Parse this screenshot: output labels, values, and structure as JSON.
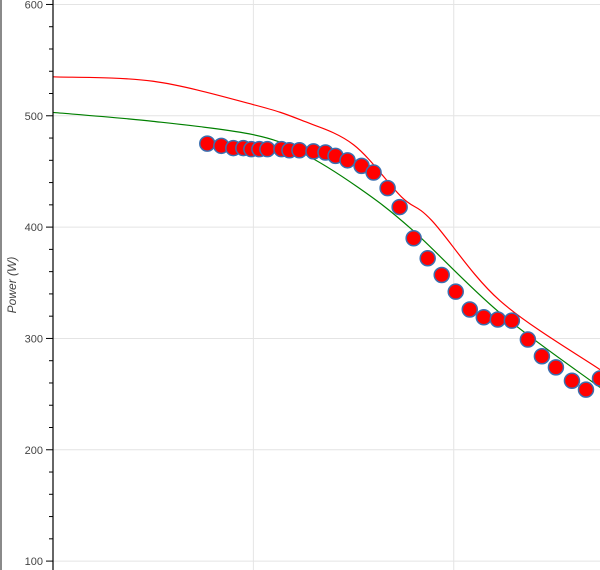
{
  "chart_data": {
    "type": "scatter",
    "title": "",
    "xlabel": "",
    "ylabel": "Power (W)",
    "xlim": [
      0,
      2.73
    ],
    "ylim": [
      92,
      604
    ],
    "x_gridlines": [
      1,
      2
    ],
    "y_ticks": [
      100,
      200,
      300,
      400,
      500,
      600
    ],
    "y_tick_labels": [
      "100",
      "200",
      "300",
      "400",
      "500",
      "600"
    ],
    "y_minor_tick_step": 20,
    "grid": true,
    "points": {
      "x": [
        0.77,
        0.84,
        0.9,
        0.95,
        0.99,
        1.03,
        1.07,
        1.14,
        1.18,
        1.23,
        1.3,
        1.36,
        1.41,
        1.47,
        1.54,
        1.6,
        1.67,
        1.73,
        1.8,
        1.87,
        1.94,
        2.01,
        2.08,
        2.15,
        2.22,
        2.29,
        2.37,
        2.44,
        2.51,
        2.59,
        2.66,
        2.73
      ],
      "y": [
        475,
        473,
        471,
        471,
        470,
        470,
        470,
        470,
        469,
        469,
        468,
        467,
        464,
        460,
        455,
        449,
        435,
        418,
        390,
        372,
        357,
        342,
        326,
        319,
        317,
        316,
        299,
        284,
        274,
        262,
        254,
        264
      ],
      "fill": "#ff0000",
      "stroke": "#3a6fb0"
    },
    "lines": [
      {
        "color": "#ff0000",
        "x": [
          0,
          0.5,
          1,
          1.24,
          1.5,
          1.74,
          1.89,
          2.23,
          2.73
        ],
        "y": [
          535,
          531,
          510,
          496,
          474,
          427,
          406,
          334,
          272
        ]
      },
      {
        "color": "#008000",
        "x": [
          0,
          0.5,
          1,
          1.24,
          1.52,
          1.79,
          2.23,
          2.73
        ],
        "y": [
          503,
          495,
          483,
          467,
          436,
          398,
          323,
          256
        ]
      }
    ]
  }
}
